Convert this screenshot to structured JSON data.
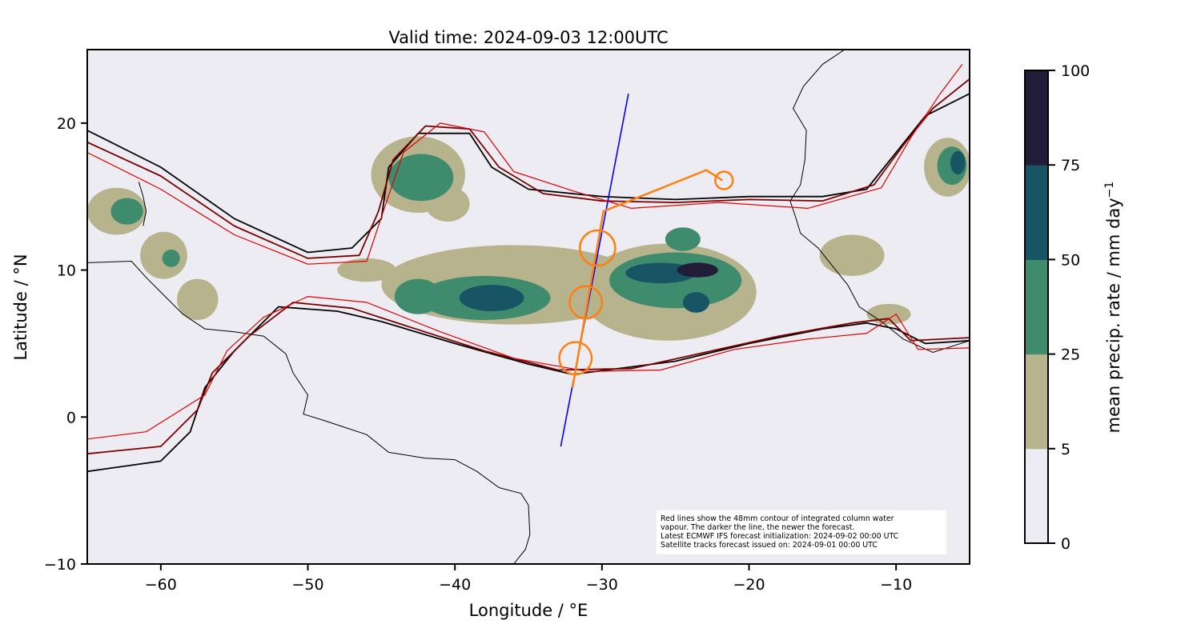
{
  "chart_data": {
    "type": "map",
    "title": "Valid time: 2024-09-03 12:00UTC",
    "xlabel": "Longitude / °E",
    "ylabel": "Latitude / °N",
    "xlim": [
      -65,
      -5
    ],
    "ylim": [
      -10,
      25
    ],
    "xticks": [
      -60,
      -50,
      -40,
      -30,
      -20,
      -10
    ],
    "xtick_labels": [
      "−60",
      "−50",
      "−40",
      "−30",
      "−20",
      "−10"
    ],
    "yticks": [
      -10,
      0,
      10,
      20
    ],
    "ytick_labels": [
      "−10",
      "0",
      "10",
      "20"
    ],
    "colorbar": {
      "label": "mean precip. rate / mm day",
      "label_sup": "−1",
      "bounds": [
        0,
        5,
        25,
        50,
        75,
        100
      ],
      "tick_labels": [
        "0",
        "5",
        "25",
        "50",
        "75",
        "100"
      ],
      "colors": [
        "#edecf2",
        "#b7b38d",
        "#3f8b6e",
        "#175564",
        "#211c37"
      ]
    },
    "background_color": "#edecf2",
    "precip_blobs": [
      {
        "lon": -42.5,
        "lat": 16.5,
        "rx": 3.2,
        "ry": 2.6,
        "level": 1
      },
      {
        "lon": -42.3,
        "lat": 16.3,
        "rx": 2.2,
        "ry": 1.6,
        "level": 2
      },
      {
        "lon": -40.5,
        "lat": 14.5,
        "rx": 1.5,
        "ry": 1.2,
        "level": 1
      },
      {
        "lon": -36,
        "lat": 9,
        "rx": 9,
        "ry": 2.7,
        "level": 1
      },
      {
        "lon": -38,
        "lat": 8.1,
        "rx": 4.5,
        "ry": 1.5,
        "level": 2
      },
      {
        "lon": -37.5,
        "lat": 8.1,
        "rx": 2.2,
        "ry": 0.9,
        "level": 3
      },
      {
        "lon": -42.5,
        "lat": 8.2,
        "rx": 1.6,
        "ry": 1.2,
        "level": 2
      },
      {
        "lon": -46,
        "lat": 10,
        "rx": 2,
        "ry": 0.8,
        "level": 1
      },
      {
        "lon": -25.5,
        "lat": 8.5,
        "rx": 6,
        "ry": 3.3,
        "level": 1
      },
      {
        "lon": -25,
        "lat": 9.3,
        "rx": 4.5,
        "ry": 1.9,
        "level": 2
      },
      {
        "lon": -26,
        "lat": 9.8,
        "rx": 2.4,
        "ry": 0.7,
        "level": 3
      },
      {
        "lon": -23.5,
        "lat": 10,
        "rx": 1.4,
        "ry": 0.5,
        "level": 4
      },
      {
        "lon": -23.6,
        "lat": 7.8,
        "rx": 0.9,
        "ry": 0.7,
        "level": 3
      },
      {
        "lon": -24.5,
        "lat": 12.1,
        "rx": 1.2,
        "ry": 0.8,
        "level": 2
      },
      {
        "lon": -63,
        "lat": 14,
        "rx": 2,
        "ry": 1.6,
        "level": 1
      },
      {
        "lon": -62.3,
        "lat": 14,
        "rx": 1.1,
        "ry": 0.9,
        "level": 2
      },
      {
        "lon": -59.8,
        "lat": 11,
        "rx": 1.6,
        "ry": 1.6,
        "level": 1
      },
      {
        "lon": -59.3,
        "lat": 10.8,
        "rx": 0.6,
        "ry": 0.6,
        "level": 2
      },
      {
        "lon": -57.5,
        "lat": 8,
        "rx": 1.4,
        "ry": 1.4,
        "level": 1
      },
      {
        "lon": -6.5,
        "lat": 17,
        "rx": 1.6,
        "ry": 2,
        "level": 1
      },
      {
        "lon": -6.2,
        "lat": 17.1,
        "rx": 1,
        "ry": 1.3,
        "level": 2
      },
      {
        "lon": -5.8,
        "lat": 17.3,
        "rx": 0.5,
        "ry": 0.8,
        "level": 3
      },
      {
        "lon": -13,
        "lat": 11,
        "rx": 2.2,
        "ry": 1.4,
        "level": 1
      },
      {
        "lon": -10.5,
        "lat": 7,
        "rx": 1.5,
        "ry": 0.7,
        "level": 1
      }
    ],
    "moisture_contours": [
      {
        "color": "#000000",
        "points": [
          [
            -65,
            19.5
          ],
          [
            -60,
            17
          ],
          [
            -55,
            13.5
          ],
          [
            -50,
            11.2
          ],
          [
            -47,
            11.5
          ],
          [
            -45,
            13.5
          ],
          [
            -44.5,
            17
          ],
          [
            -42.5,
            19.3
          ],
          [
            -39,
            19.3
          ],
          [
            -37.5,
            17
          ],
          [
            -35,
            15.5
          ],
          [
            -30,
            15
          ],
          [
            -25,
            14.8
          ],
          [
            -20,
            15
          ],
          [
            -15,
            15
          ],
          [
            -12,
            15.5
          ],
          [
            -10,
            18
          ],
          [
            -8,
            20.5
          ],
          [
            -5,
            22
          ]
        ]
      },
      {
        "color": "#000000",
        "points": [
          [
            -65,
            -3.7
          ],
          [
            -60,
            -3
          ],
          [
            -58,
            -1
          ],
          [
            -57,
            2
          ],
          [
            -55,
            4.5
          ],
          [
            -52,
            7.5
          ],
          [
            -48,
            7.2
          ],
          [
            -45,
            6.5
          ],
          [
            -40,
            5
          ],
          [
            -35,
            3.6
          ],
          [
            -32,
            2.9
          ],
          [
            -25,
            3.8
          ],
          [
            -20,
            5
          ],
          [
            -15,
            6
          ],
          [
            -12,
            6.4
          ],
          [
            -10,
            6
          ],
          [
            -8,
            5
          ],
          [
            -5,
            5.2
          ]
        ]
      },
      {
        "color": "#7a0000",
        "points": [
          [
            -65,
            18.7
          ],
          [
            -60,
            16.4
          ],
          [
            -55,
            13
          ],
          [
            -50,
            10.8
          ],
          [
            -46.5,
            11
          ],
          [
            -45.2,
            14
          ],
          [
            -44.2,
            17.5
          ],
          [
            -42,
            19.8
          ],
          [
            -39,
            19.6
          ],
          [
            -37,
            17
          ],
          [
            -34,
            15.2
          ],
          [
            -30,
            14.7
          ],
          [
            -25,
            14.6
          ],
          [
            -20,
            14.8
          ],
          [
            -15,
            14.7
          ],
          [
            -11.5,
            15.8
          ],
          [
            -9.5,
            18.5
          ],
          [
            -7.5,
            21
          ],
          [
            -5,
            23
          ]
        ]
      },
      {
        "color": "#7a0000",
        "points": [
          [
            -65,
            -2.5
          ],
          [
            -60,
            -2
          ],
          [
            -57.5,
            0.5
          ],
          [
            -56.5,
            3
          ],
          [
            -54,
            5.5
          ],
          [
            -51,
            7.8
          ],
          [
            -47,
            7.4
          ],
          [
            -43,
            6.1
          ],
          [
            -38,
            4.5
          ],
          [
            -33,
            3.2
          ],
          [
            -28,
            3.3
          ],
          [
            -23,
            4.4
          ],
          [
            -18,
            5.5
          ],
          [
            -13,
            6.4
          ],
          [
            -10.5,
            6.7
          ],
          [
            -9,
            5.2
          ],
          [
            -5,
            5.4
          ]
        ]
      },
      {
        "color": "#e00000",
        "points": [
          [
            -65,
            18
          ],
          [
            -60,
            15.5
          ],
          [
            -55,
            12.4
          ],
          [
            -50,
            10.4
          ],
          [
            -46,
            10.6
          ],
          [
            -44.7,
            14.5
          ],
          [
            -43.5,
            18
          ],
          [
            -41,
            20
          ],
          [
            -38,
            19.4
          ],
          [
            -36,
            16.7
          ],
          [
            -32,
            15.4
          ],
          [
            -28,
            14.2
          ],
          [
            -22,
            14.6
          ],
          [
            -16,
            14.2
          ],
          [
            -11,
            15.6
          ],
          [
            -9,
            19
          ],
          [
            -7,
            22
          ],
          [
            -5.5,
            24
          ]
        ]
      },
      {
        "color": "#e00000",
        "points": [
          [
            -65,
            -1.5
          ],
          [
            -61,
            -1
          ],
          [
            -57,
            1.5
          ],
          [
            -55.5,
            4.5
          ],
          [
            -53,
            6.8
          ],
          [
            -50,
            8.2
          ],
          [
            -46,
            7.8
          ],
          [
            -41,
            5.8
          ],
          [
            -36,
            4
          ],
          [
            -31,
            3.1
          ],
          [
            -26,
            3.2
          ],
          [
            -21,
            4.6
          ],
          [
            -16,
            5.3
          ],
          [
            -12,
            5.7
          ],
          [
            -10,
            7
          ],
          [
            -8.5,
            4.6
          ],
          [
            -5,
            4.7
          ]
        ]
      }
    ],
    "coastlines": [
      {
        "name": "south-america",
        "points": [
          [
            -65,
            10.5
          ],
          [
            -62,
            10.6
          ],
          [
            -61,
            9.5
          ],
          [
            -60,
            8.5
          ],
          [
            -58.5,
            7
          ],
          [
            -57,
            6
          ],
          [
            -55,
            5.8
          ],
          [
            -53,
            5.5
          ],
          [
            -51.5,
            4.3
          ],
          [
            -51,
            3
          ],
          [
            -50,
            1.5
          ],
          [
            -50.3,
            0.2
          ],
          [
            -49,
            -0.2
          ],
          [
            -47.5,
            -0.7
          ],
          [
            -46,
            -1.2
          ],
          [
            -44.5,
            -2.4
          ],
          [
            -42,
            -2.8
          ],
          [
            -40,
            -2.9
          ],
          [
            -38.5,
            -3.7
          ],
          [
            -37,
            -4.8
          ],
          [
            -35.5,
            -5.2
          ],
          [
            -35,
            -6
          ],
          [
            -34.9,
            -8
          ],
          [
            -35.2,
            -9
          ],
          [
            -36,
            -10
          ]
        ]
      },
      {
        "name": "africa",
        "points": [
          [
            -5,
            5.2
          ],
          [
            -7.5,
            4.4
          ],
          [
            -9.5,
            5.3
          ],
          [
            -11,
            6.5
          ],
          [
            -12.5,
            7.5
          ],
          [
            -13.3,
            9
          ],
          [
            -14.5,
            10.5
          ],
          [
            -15.3,
            11.5
          ],
          [
            -16.5,
            12.5
          ],
          [
            -16.8,
            13.5
          ],
          [
            -17.2,
            14.7
          ],
          [
            -16.5,
            15.8
          ],
          [
            -16.2,
            17.5
          ],
          [
            -16.1,
            19.5
          ],
          [
            -17,
            21
          ],
          [
            -16.3,
            22.5
          ],
          [
            -15,
            24
          ],
          [
            -13.5,
            25
          ]
        ]
      },
      {
        "name": "lesser-antilles",
        "points": [
          [
            -61.5,
            16
          ],
          [
            -61.2,
            15
          ],
          [
            -61,
            14
          ],
          [
            -61.2,
            13
          ]
        ]
      }
    ],
    "satellite_track": {
      "color": "#0000ff",
      "points": [
        [
          -32.8,
          -2
        ],
        [
          -28.2,
          22
        ]
      ]
    },
    "forecast_track": {
      "color": "#ff7f0e",
      "points": [
        [
          -32,
          2
        ],
        [
          -29.9,
          14
        ],
        [
          -22.9,
          16.8
        ],
        [
          -21.8,
          16.1
        ]
      ]
    },
    "track_circles": [
      {
        "lon": -30.3,
        "lat": 11.5,
        "r": 1.2
      },
      {
        "lon": -31.1,
        "lat": 7.8,
        "r": 1.1
      },
      {
        "lon": -31.8,
        "lat": 4.0,
        "r": 1.1
      },
      {
        "lon": -21.7,
        "lat": 16.1,
        "r": 0.6
      }
    ]
  },
  "annotation": {
    "line1": "Red lines show the 48mm contour of integrated column water",
    "line2": "vapour. The darker the line, the newer the forecast.",
    "line3": "Latest ECMWF IFS forecast initialization: 2024-09-02 00:00 UTC",
    "line4": "Satellite tracks forecast issued on: 2024-09-01 00:00 UTC"
  }
}
